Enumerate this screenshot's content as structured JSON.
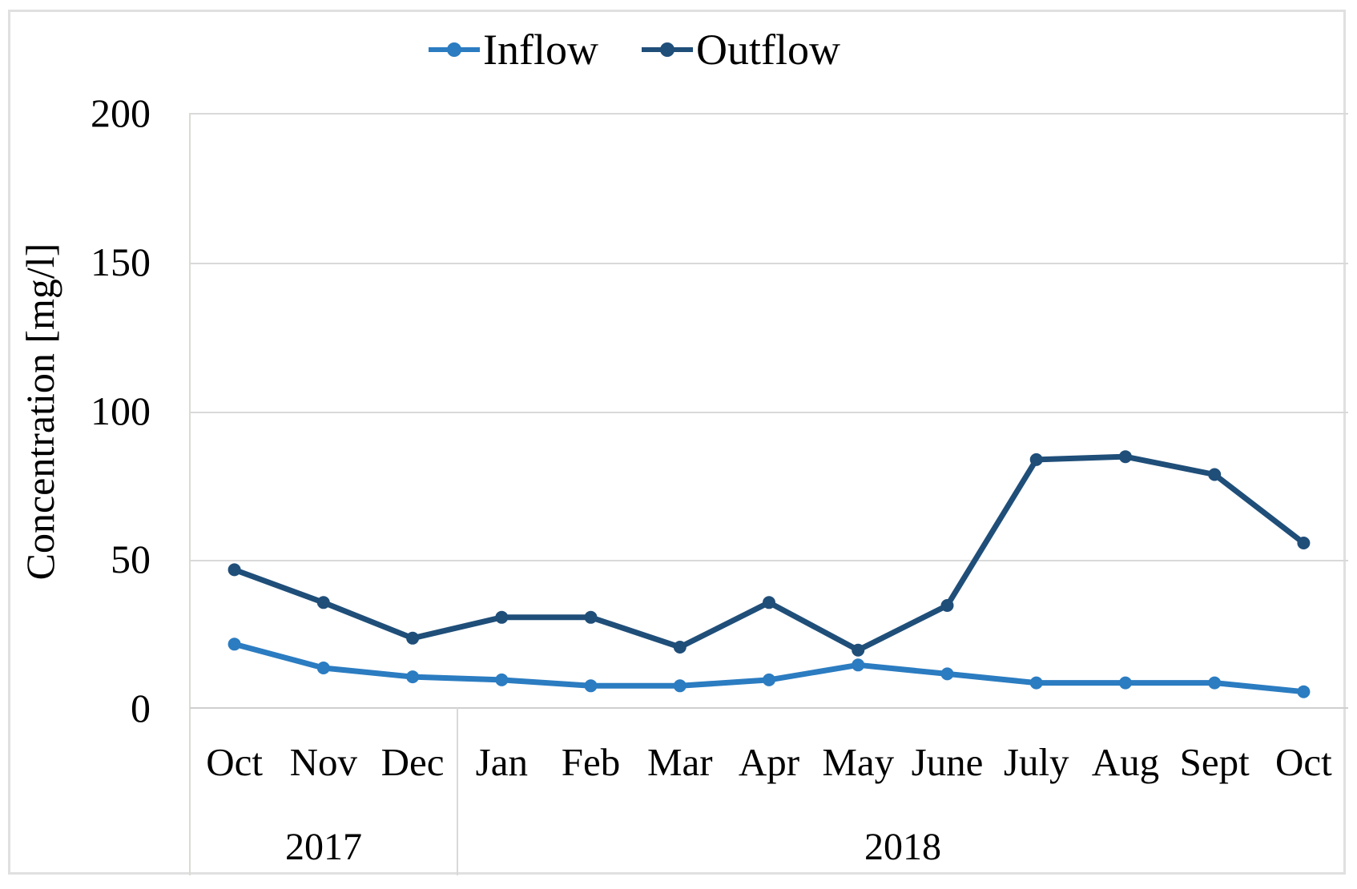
{
  "chart_data": {
    "type": "line",
    "title": "",
    "xlabel": "",
    "ylabel": "Concentration [mg/l]",
    "ylim": [
      0,
      200
    ],
    "yticks": [
      200,
      150,
      100,
      50,
      0
    ],
    "grid": "horizontal",
    "legend_position": "top-center",
    "categories": [
      "Oct",
      "Nov",
      "Dec",
      "Jan",
      "Feb",
      "Mar",
      "Apr",
      "May",
      "June",
      "July",
      "Aug",
      "Sept",
      "Oct"
    ],
    "year_groups": [
      {
        "label": "2017",
        "months": 3
      },
      {
        "label": "2018",
        "months": 10
      }
    ],
    "series": [
      {
        "name": "Inflow",
        "color": "#2b7cc1",
        "values": [
          22,
          14,
          11,
          10,
          8,
          8,
          10,
          15,
          12,
          9,
          9,
          9,
          6
        ]
      },
      {
        "name": "Outflow",
        "color": "#1f4e79",
        "values": [
          47,
          36,
          24,
          31,
          31,
          21,
          36,
          20,
          35,
          84,
          85,
          79,
          56
        ]
      }
    ],
    "colors": {
      "gridline": "#d9d9d9",
      "axis_line": "#cfcfcf",
      "frame": "#e0e0e0",
      "text": "#000000"
    }
  }
}
